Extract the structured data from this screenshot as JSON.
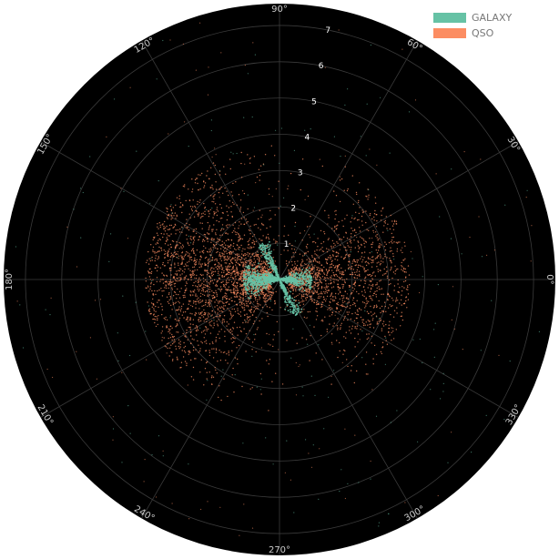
{
  "chart_data": {
    "type": "scatter",
    "coordinate_system": "polar",
    "angular_unit": "degrees",
    "angular_ticks": [
      0,
      30,
      60,
      90,
      120,
      150,
      180,
      210,
      240,
      270,
      300,
      330
    ],
    "angular_tick_labels": [
      "0°",
      "30°",
      "60°",
      "90°",
      "120°",
      "150°",
      "180°",
      "210°",
      "240°",
      "270°",
      "300°",
      "330°"
    ],
    "radial_ticks": [
      1,
      2,
      3,
      4,
      5,
      6,
      7
    ],
    "radial_tick_labels": [
      "1",
      "2",
      "3",
      "4",
      "5",
      "6",
      "7"
    ],
    "radial_range": [
      0,
      7.6
    ],
    "grid": true,
    "background": "#000000",
    "legend_position": "top-right",
    "series": [
      {
        "name": "GALAXY",
        "color": "#66c2a5",
        "description_points": "dense cluster near origin, angles ~110-130 and ~290-310 deg and near 180/0 deg, radius 0-1.1",
        "clusters": [
          {
            "theta_center": 180,
            "theta_spread": 24,
            "r_min": 0.0,
            "r_max": 1.0
          },
          {
            "theta_center": 0,
            "theta_spread": 20,
            "r_min": 0.0,
            "r_max": 0.9
          },
          {
            "theta_center": 115,
            "theta_spread": 10,
            "r_min": 0.0,
            "r_max": 1.1
          },
          {
            "theta_center": 295,
            "theta_spread": 10,
            "r_min": 0.0,
            "r_max": 1.1
          }
        ]
      },
      {
        "name": "QSO",
        "color": "#fc8d62",
        "clusters": [
          {
            "theta_center": 178,
            "theta_spread": 60,
            "r_min": 0.3,
            "r_max": 3.7
          },
          {
            "theta_center": 2,
            "theta_spread": 45,
            "r_min": 0.3,
            "r_max": 3.6
          }
        ]
      }
    ]
  }
}
